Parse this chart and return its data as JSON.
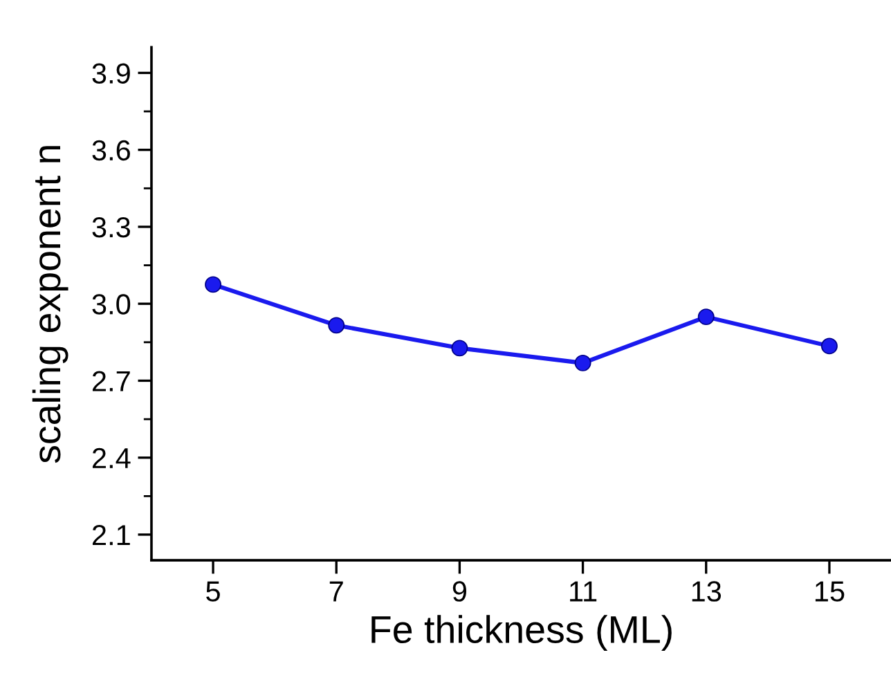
{
  "chart_data": {
    "type": "line",
    "xlabel": "Fe thickness (ML)",
    "ylabel": "scaling exponent n",
    "x": [
      5,
      7,
      9,
      11,
      13,
      15
    ],
    "series": [
      {
        "color": "#1a1aee",
        "values": [
          3.075,
          2.916,
          2.827,
          2.769,
          2.949,
          2.835
        ]
      }
    ],
    "xlim": [
      4,
      16
    ],
    "xticks": [
      5,
      7,
      9,
      11,
      13,
      15
    ],
    "ylim": [
      2.0,
      4.0
    ],
    "yticks": [
      {
        "value": 2.1,
        "label": "2.1"
      },
      {
        "value": 2.4,
        "label": "2.4"
      },
      {
        "value": 2.7,
        "label": "2.7"
      },
      {
        "value": 3.0,
        "label": "3.0"
      },
      {
        "value": 3.3,
        "label": "3.3"
      },
      {
        "value": 3.6,
        "label": "3.6"
      },
      {
        "value": 3.9,
        "label": "3.9"
      }
    ],
    "marker": "circle",
    "line_style": "solid",
    "grid": false
  }
}
